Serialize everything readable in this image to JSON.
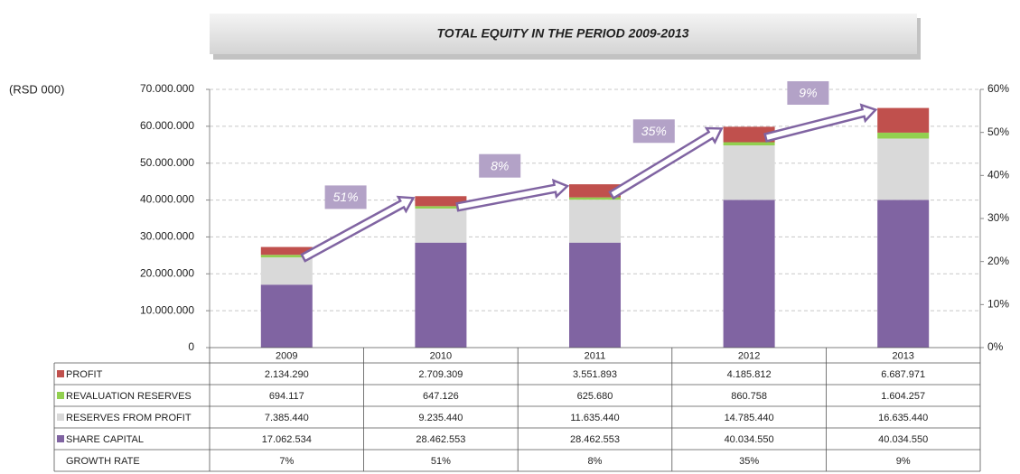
{
  "chart_data": {
    "type": "bar",
    "stacked": true,
    "title": "TOTAL EQUITY IN THE PERIOD 2009-2013",
    "y_label": "(RSD 000)",
    "categories": [
      "2009",
      "2010",
      "2011",
      "2012",
      "2013"
    ],
    "series": [
      {
        "name": "PROFIT",
        "color": "#c0504d",
        "values": [
          2134290,
          2709309,
          3551893,
          4185812,
          6687971
        ],
        "value_labels": [
          "2.134.290",
          "2.709.309",
          "3.551.893",
          "4.185.812",
          "6.687.971"
        ]
      },
      {
        "name": "REVALUATION RESERVES",
        "color": "#92d050",
        "values": [
          694117,
          647126,
          625680,
          860758,
          1604257
        ],
        "value_labels": [
          "694.117",
          "647.126",
          "625.680",
          "860.758",
          "1.604.257"
        ]
      },
      {
        "name": "RESERVES FROM PROFIT",
        "color": "#d9d9d9",
        "values": [
          7385440,
          9235440,
          11635440,
          14785440,
          16635440
        ],
        "value_labels": [
          "7.385.440",
          "9.235.440",
          "11.635.440",
          "14.785.440",
          "16.635.440"
        ]
      },
      {
        "name": "SHARE CAPITAL",
        "color": "#8064a2",
        "values": [
          17062534,
          28462553,
          28462553,
          40034550,
          40034550
        ],
        "value_labels": [
          "17.062.534",
          "28.462.553",
          "28.462.553",
          "40.034.550",
          "40.034.550"
        ]
      },
      {
        "name": "GROWTH RATE",
        "color": "#8064a2",
        "axis": "y2",
        "values": [
          7,
          51,
          8,
          35,
          9
        ],
        "value_labels": [
          "7%",
          "51%",
          "8%",
          "35%",
          "9%"
        ]
      }
    ],
    "ylim": [
      0,
      70000000
    ],
    "yticks": [
      {
        "value": 0,
        "label": "0"
      },
      {
        "value": 10000000,
        "label": "10.000.000"
      },
      {
        "value": 20000000,
        "label": "20.000.000"
      },
      {
        "value": 30000000,
        "label": "30.000.000"
      },
      {
        "value": 40000000,
        "label": "40.000.000"
      },
      {
        "value": 50000000,
        "label": "50.000.000"
      },
      {
        "value": 60000000,
        "label": "60.000.000"
      },
      {
        "value": 70000000,
        "label": "70.000.000"
      }
    ],
    "y2lim": [
      0,
      60
    ],
    "y2ticks": [
      {
        "value": 0,
        "label": "0%"
      },
      {
        "value": 10,
        "label": "10%"
      },
      {
        "value": 20,
        "label": "20%"
      },
      {
        "value": 30,
        "label": "30%"
      },
      {
        "value": 40,
        "label": "40%"
      },
      {
        "value": 50,
        "label": "50%"
      },
      {
        "value": 60,
        "label": "60%"
      }
    ],
    "grid": true
  }
}
